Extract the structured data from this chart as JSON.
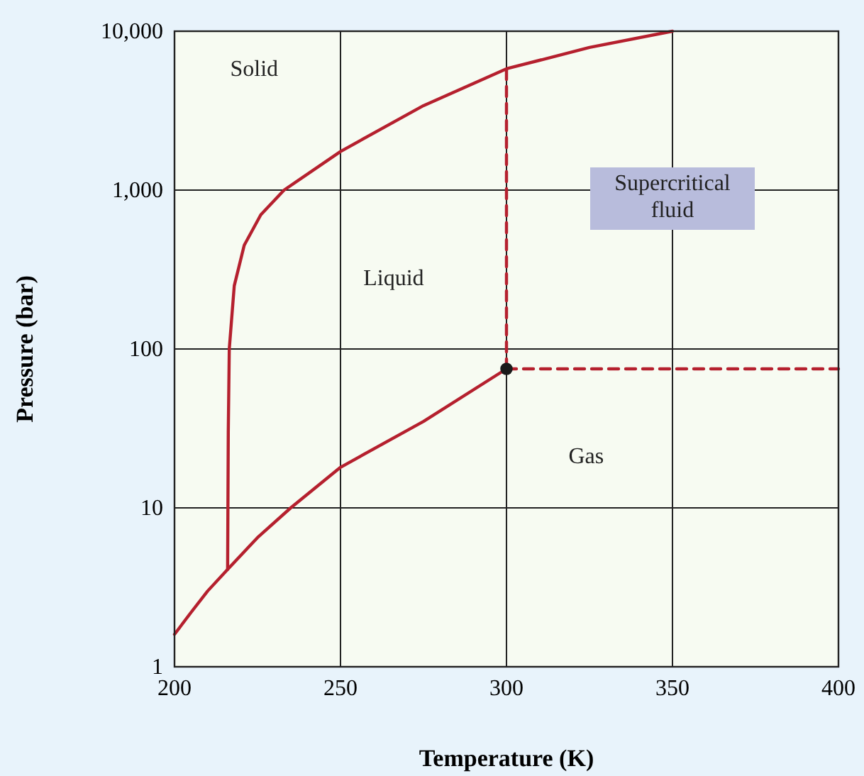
{
  "chart_data": {
    "type": "line",
    "xlabel": "Temperature (K)",
    "ylabel": "Pressure (bar)",
    "log": "y",
    "xlim": [
      200,
      400
    ],
    "xticks": [
      200,
      250,
      300,
      350,
      400
    ],
    "ylim": [
      1,
      10000
    ],
    "yticks": [
      1,
      10,
      100,
      {
        "value": 1000,
        "label": "1,000"
      },
      {
        "value": 10000,
        "label": "10,000"
      }
    ],
    "grid": true,
    "series": [
      {
        "color": "#b5202e",
        "x": [
          200,
          205,
          210,
          216,
          225,
          235,
          250,
          275,
          300
        ],
        "values": [
          1.6,
          2.2,
          3,
          4.1,
          6.5,
          10,
          18,
          35,
          75
        ]
      },
      {
        "color": "#b5202e",
        "x": [
          216,
          216.2,
          216.5,
          218,
          221,
          226,
          233,
          250,
          275,
          300,
          325,
          350
        ],
        "values": [
          4.1,
          30,
          100,
          250,
          450,
          700,
          1000,
          1750,
          3400,
          5800,
          7900,
          10000
        ]
      },
      {
        "color": "#b5202e",
        "line_style": "dashed",
        "x": [
          300,
          300
        ],
        "values": [
          75,
          5800
        ]
      },
      {
        "color": "#b5202e",
        "line_style": "dashed",
        "x": [
          300,
          400
        ],
        "values": [
          75,
          75
        ]
      },
      {
        "type": "scatter",
        "color": "#1a1a1a",
        "marker": "circle",
        "x": [
          300
        ],
        "values": [
          75
        ]
      }
    ],
    "annotations": [
      "Solid",
      "Liquid",
      "Supercritical fluid",
      "Gas"
    ]
  }
}
